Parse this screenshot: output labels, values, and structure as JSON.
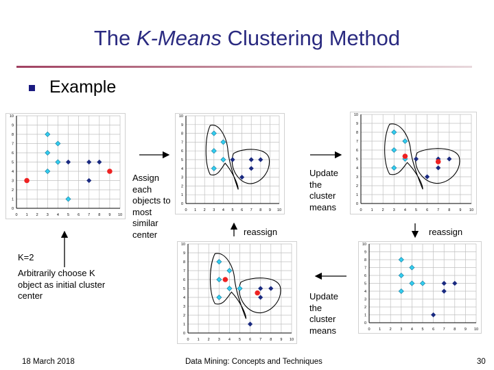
{
  "slide": {
    "title_main": "The ",
    "title_italic": "K-Means",
    "title_rest": " Clustering Method",
    "bullet": "Example",
    "labels": {
      "assign": "Assign each objects to most similar center",
      "update_top": "Update the cluster means",
      "reassign_left": "reassign",
      "reassign_right": "reassign",
      "k_eq": "K=2",
      "choose": "Arbitrarily choose K object as initial cluster center",
      "update_bottom": "Update the cluster means"
    },
    "footer": {
      "date": "18 March 2018",
      "course": "Data Mining: Concepts and Techniques",
      "page": "30"
    }
  },
  "colors": {
    "title": "#2a2a80",
    "cyan_point": "#33ccee",
    "navy_point": "#1a2a80",
    "center": "#ee2222",
    "grid": "#bfbfbf"
  },
  "plots": [
    {
      "id": "plot1",
      "xticks": [
        "0",
        "1",
        "2",
        "3",
        "4",
        "5",
        "6",
        "7",
        "8",
        "9",
        "10"
      ],
      "yticks": [
        "0",
        "1",
        "2",
        "3",
        "4",
        "5",
        "6",
        "7",
        "8",
        "9",
        "10"
      ],
      "points_cyan": [
        [
          3,
          8
        ],
        [
          4,
          7
        ],
        [
          3,
          6
        ],
        [
          4,
          5
        ],
        [
          3,
          4
        ],
        [
          5,
          1
        ]
      ],
      "points_navy": [
        [
          5,
          5
        ],
        [
          7,
          5
        ],
        [
          8,
          5
        ],
        [
          7,
          3
        ]
      ],
      "centers": [
        [
          1,
          3
        ],
        [
          9,
          4
        ]
      ],
      "outlines": []
    },
    {
      "id": "plot2",
      "xticks": [
        "0",
        "1",
        "2",
        "3",
        "4",
        "5",
        "6",
        "7",
        "8",
        "9",
        "10"
      ],
      "yticks": [
        "0",
        "1",
        "2",
        "3",
        "4",
        "5",
        "6",
        "7",
        "8",
        "9",
        "10"
      ],
      "points_cyan": [
        [
          3,
          8
        ],
        [
          4,
          7
        ],
        [
          3,
          6
        ],
        [
          4,
          5
        ],
        [
          3,
          4
        ]
      ],
      "points_navy": [
        [
          5,
          5
        ],
        [
          7,
          5
        ],
        [
          8,
          5
        ],
        [
          7,
          4
        ],
        [
          6,
          3
        ]
      ],
      "centers": [],
      "outlines": [
        "outline-left-cluster",
        "outline-right-cluster"
      ]
    },
    {
      "id": "plot3",
      "xticks": [
        "0",
        "1",
        "2",
        "3",
        "4",
        "5",
        "6",
        "7",
        "8",
        "9",
        "10"
      ],
      "yticks": [
        "0",
        "1",
        "2",
        "3",
        "4",
        "5",
        "6",
        "7",
        "8",
        "9",
        "10"
      ],
      "points_cyan": [
        [
          3,
          8
        ],
        [
          4,
          7
        ],
        [
          3,
          6
        ],
        [
          4,
          5
        ],
        [
          3,
          4
        ]
      ],
      "points_navy": [
        [
          5,
          5
        ],
        [
          7,
          5
        ],
        [
          8,
          5
        ],
        [
          7,
          4
        ],
        [
          6,
          3
        ]
      ],
      "centers": [
        [
          4,
          5.3
        ],
        [
          7,
          4.7
        ]
      ],
      "outlines": [
        "outline-left-cluster",
        "outline-right-cluster"
      ]
    },
    {
      "id": "plot4",
      "xticks": [
        "0",
        "1",
        "2",
        "3",
        "4",
        "5",
        "6",
        "7",
        "8",
        "9",
        "10"
      ],
      "yticks": [
        "0",
        "1",
        "2",
        "3",
        "4",
        "5",
        "6",
        "7",
        "8",
        "9",
        "10"
      ],
      "points_cyan": [
        [
          3,
          8
        ],
        [
          4,
          7
        ],
        [
          3,
          6
        ],
        [
          4,
          5
        ],
        [
          3,
          4
        ],
        [
          5,
          5
        ]
      ],
      "points_navy": [
        [
          7,
          5
        ],
        [
          7,
          4
        ],
        [
          8,
          5
        ],
        [
          6,
          1
        ]
      ],
      "centers": [
        [
          3.6,
          6
        ],
        [
          6.7,
          4.5
        ]
      ],
      "outlines": [
        "outline-left-cluster",
        "outline-right-cluster"
      ]
    },
    {
      "id": "plot5",
      "xticks": [
        "0",
        "1",
        "2",
        "3",
        "4",
        "5",
        "6",
        "7",
        "8",
        "9",
        "10"
      ],
      "yticks": [
        "0",
        "1",
        "2",
        "3",
        "4",
        "5",
        "6",
        "7",
        "8",
        "9",
        "10"
      ],
      "points_cyan": [
        [
          3,
          8
        ],
        [
          4,
          7
        ],
        [
          3,
          6
        ],
        [
          4,
          5
        ],
        [
          3,
          4
        ],
        [
          5,
          5
        ]
      ],
      "points_navy": [
        [
          7,
          5
        ],
        [
          7,
          4
        ],
        [
          8,
          5
        ],
        [
          6,
          1
        ]
      ],
      "centers": [],
      "outlines": []
    }
  ]
}
